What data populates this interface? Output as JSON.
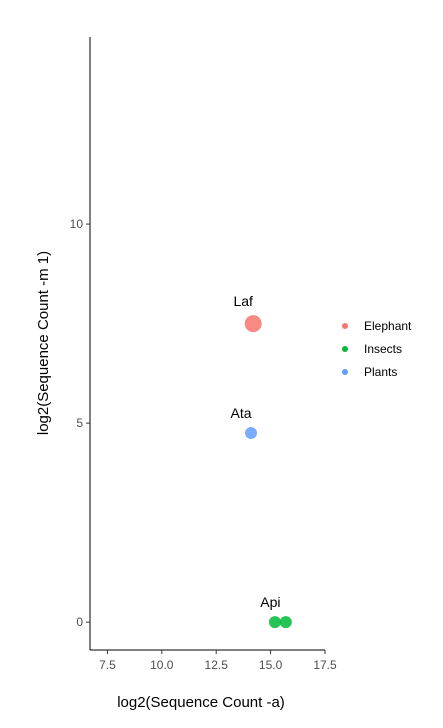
{
  "chart_data": {
    "type": "scatter",
    "title": "",
    "xlabel": "log2(Sequence Count -a)",
    "ylabel": "log2(Sequence Count -m 1)",
    "xlim": [
      6.7,
      17.5
    ],
    "ylim": [
      -0.7,
      14.7
    ],
    "x_ticks": [
      "7.5",
      "10.0",
      "12.5",
      "15.0",
      "17.5"
    ],
    "y_ticks": [
      "0",
      "5",
      "10"
    ],
    "x_tick_values": [
      7.5,
      10.0,
      12.5,
      15.0,
      17.5
    ],
    "y_tick_values": [
      0,
      5,
      10
    ],
    "grid": false,
    "legend_position": "right",
    "series": [
      {
        "name": "Elephant",
        "color": "#F8766D",
        "points": [
          {
            "x": 14.2,
            "y": 7.5,
            "size": "large",
            "label": "Laf"
          }
        ]
      },
      {
        "name": "Insects",
        "color": "#00BA38",
        "points": [
          {
            "x": 15.2,
            "y": 0.0,
            "size": "medium",
            "label": ""
          },
          {
            "x": 15.7,
            "y": 0.0,
            "size": "medium",
            "label": "Api"
          }
        ]
      },
      {
        "name": "Plants",
        "color": "#619CFF",
        "points": [
          {
            "x": 14.1,
            "y": 4.75,
            "size": "medium",
            "label": "Ata"
          }
        ]
      }
    ]
  }
}
